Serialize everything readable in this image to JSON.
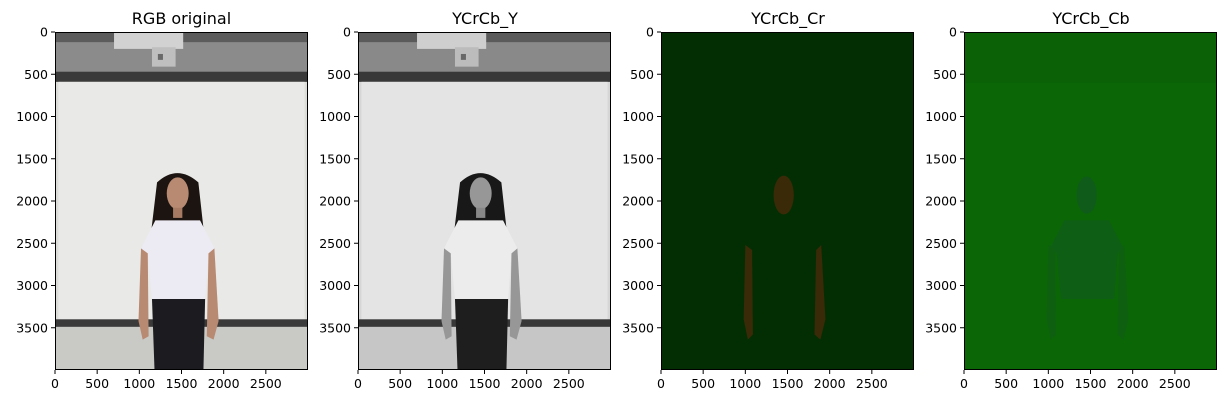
{
  "chart_data": [
    {
      "type": "image",
      "title": "RGB original",
      "render": "rgb",
      "xlim": [
        0,
        3000
      ],
      "ylim": [
        4000,
        0
      ],
      "xticks": [
        0,
        500,
        1000,
        1500,
        2000,
        2500
      ],
      "yticks": [
        0,
        500,
        1000,
        1500,
        2000,
        2500,
        3000,
        3500
      ]
    },
    {
      "type": "image",
      "title": "YCrCb_Y",
      "render": "gray",
      "xlim": [
        0,
        3000
      ],
      "ylim": [
        4000,
        0
      ],
      "xticks": [
        0,
        500,
        1000,
        1500,
        2000,
        2500
      ],
      "yticks": [
        0,
        500,
        1000,
        1500,
        2000,
        2500,
        3000,
        3500
      ]
    },
    {
      "type": "image",
      "title": "YCrCb_Cr",
      "render": "cr",
      "xlim": [
        0,
        3000
      ],
      "ylim": [
        4000,
        0
      ],
      "xticks": [
        0,
        500,
        1000,
        1500,
        2000,
        2500
      ],
      "yticks": [
        0,
        500,
        1000,
        1500,
        2000,
        2500,
        3000,
        3500
      ]
    },
    {
      "type": "image",
      "title": "YCrCb_Cb",
      "render": "cb",
      "xlim": [
        0,
        3000
      ],
      "ylim": [
        4000,
        0
      ],
      "xticks": [
        0,
        500,
        1000,
        1500,
        2000,
        2500
      ],
      "yticks": [
        0,
        500,
        1000,
        1500,
        2000,
        2500,
        3000,
        3500
      ]
    }
  ],
  "colors": {
    "wall": "#e9e9e7",
    "ceiling": "#8a8a8a",
    "rail": "#3a3a3a",
    "shirt": "#ecebf4",
    "pants": "#1c1c20",
    "hair": "#1b1410",
    "skin": "#b88a72",
    "cr_background": "#032e03",
    "cr_skin": "#3a2a07",
    "cb_background": "#0b6606",
    "cb_body": "#0f5c1a"
  }
}
